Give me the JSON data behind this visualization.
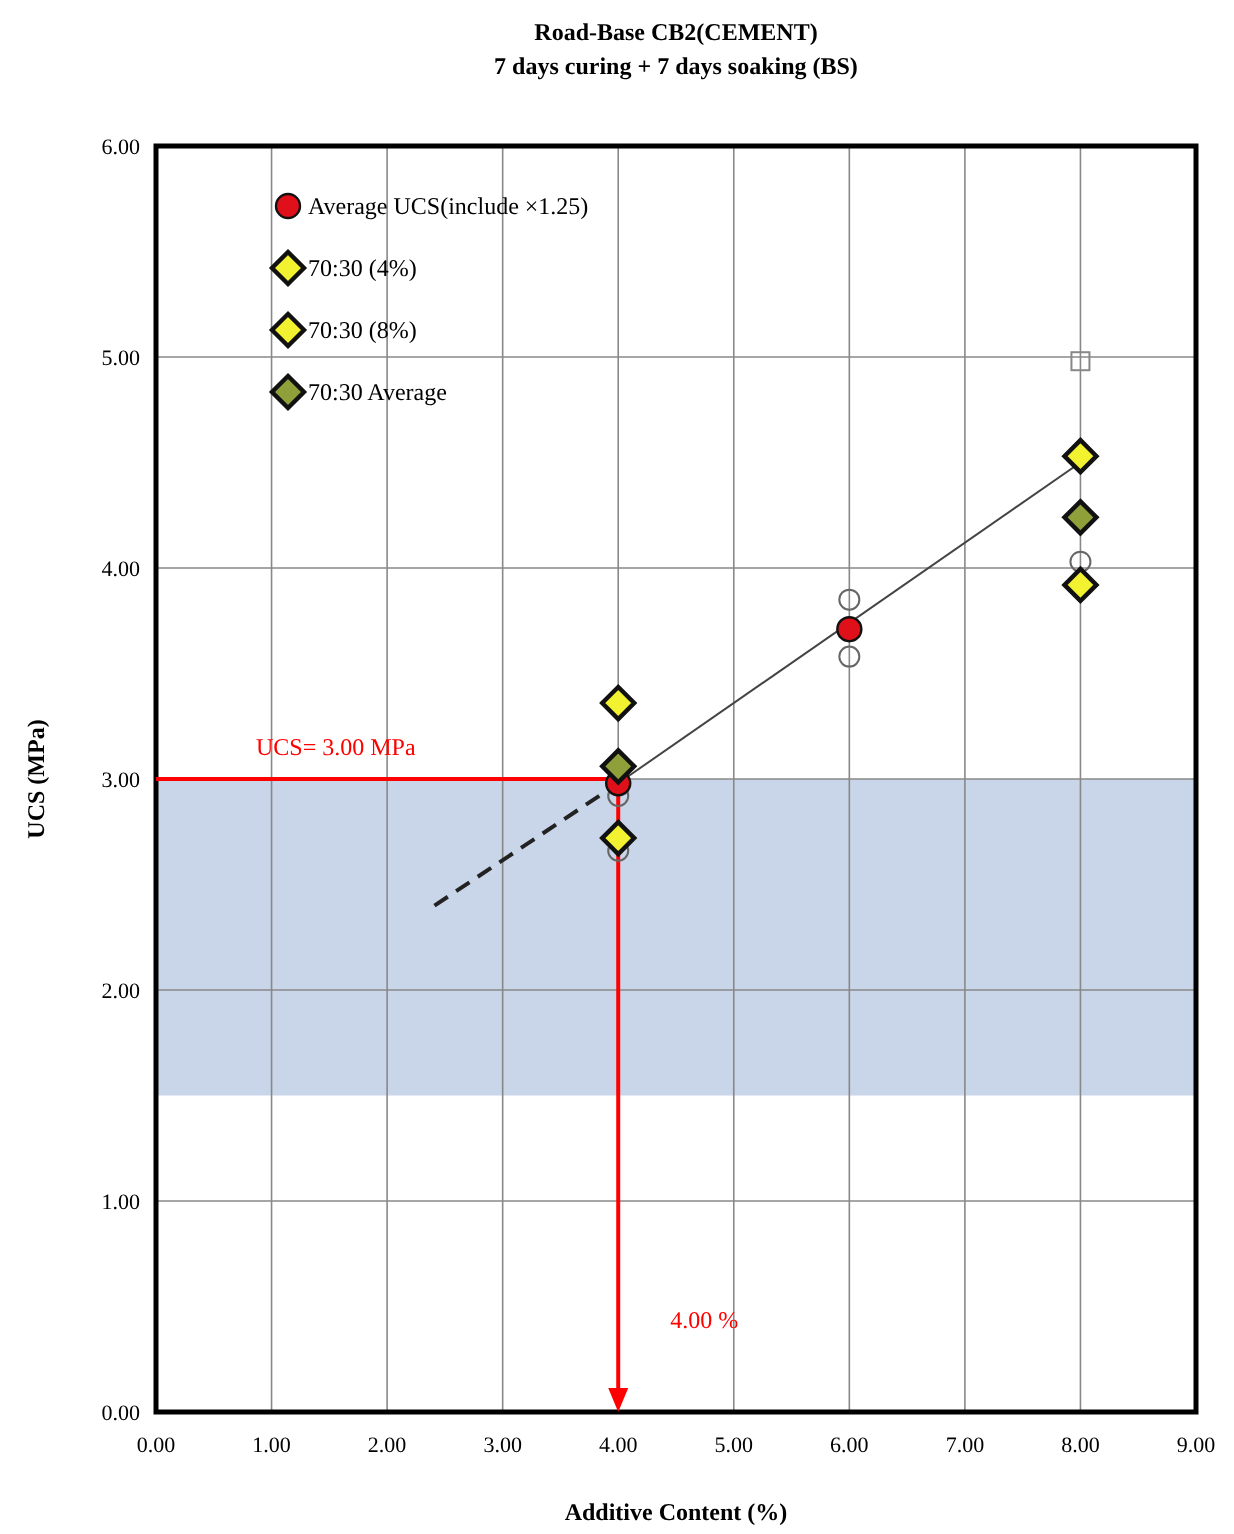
{
  "chart_data": {
    "type": "scatter",
    "title": "Road-Base CB2(CEMENT)",
    "subtitle": "7 days curing + 7 days soaking (BS)",
    "xlabel": "Additive Content (%)",
    "ylabel": "UCS (MPa)",
    "xlim": [
      0,
      9
    ],
    "ylim": [
      0,
      6
    ],
    "xticks": [
      {
        "value": 0,
        "label": "0.00"
      },
      {
        "value": 1,
        "label": "1.00"
      },
      {
        "value": 2,
        "label": "2.00"
      },
      {
        "value": 3,
        "label": "3.00"
      },
      {
        "value": 4,
        "label": "4.00"
      },
      {
        "value": 5,
        "label": "5.00"
      },
      {
        "value": 6,
        "label": "6.00"
      },
      {
        "value": 7,
        "label": "7.00"
      },
      {
        "value": 8,
        "label": "8.00"
      },
      {
        "value": 9,
        "label": "9.00"
      }
    ],
    "yticks": [
      {
        "value": 0,
        "label": "0.00"
      },
      {
        "value": 1,
        "label": "1.00"
      },
      {
        "value": 2,
        "label": "2.00"
      },
      {
        "value": 3,
        "label": "3.00"
      },
      {
        "value": 4,
        "label": "4.00"
      },
      {
        "value": 5,
        "label": "5.00"
      },
      {
        "value": 6,
        "label": "6.00"
      }
    ],
    "grid": true,
    "legend": "top left",
    "bands": [
      {
        "axis": "y",
        "from": 1.5,
        "to": 3.0,
        "color": "#c9d5e8"
      }
    ],
    "ref_lines": [
      {
        "axis": "y",
        "value": 3.0,
        "label": "UCS= 3.00 MPa",
        "color": "#ff0000"
      },
      {
        "axis": "x",
        "value": 4.0,
        "label": "4.00 %",
        "color": "#ff0000"
      }
    ],
    "series": [
      {
        "type": "line",
        "x": [
          2.41,
          4
        ],
        "values": [
          2.4,
          2.98
        ],
        "color": "#222222",
        "line_style": "dashed",
        "marker": "none"
      },
      {
        "type": "line",
        "x": [
          4,
          8
        ],
        "values": [
          2.98,
          4.5
        ],
        "color": "#444444",
        "line_style": "solid",
        "marker": "none"
      },
      {
        "x": [
          4,
          4,
          6,
          6,
          8
        ],
        "values": [
          2.92,
          2.66,
          3.85,
          3.58,
          4.03
        ],
        "color": "#666666",
        "marker": "circle"
      },
      {
        "x": [
          8
        ],
        "values": [
          4.98
        ],
        "color": "#888888",
        "marker": "square"
      },
      {
        "name": "Average UCS(include ×1.25)",
        "x": [
          4,
          6
        ],
        "values": [
          2.98,
          3.71
        ],
        "color": "#e0101a",
        "marker": "circle"
      },
      {
        "name": "70:30 (4%)",
        "x": [
          4,
          4
        ],
        "values": [
          3.36,
          2.72
        ],
        "color": "#f2f230",
        "marker": "diamond"
      },
      {
        "name": "70:30 (8%)",
        "x": [
          8,
          8
        ],
        "values": [
          4.53,
          3.92
        ],
        "color": "#f2f230",
        "marker": "diamond"
      },
      {
        "name": "70:30 Average",
        "x": [
          4,
          8
        ],
        "values": [
          3.06,
          4.24
        ],
        "color": "#8fa03a",
        "marker": "diamond"
      }
    ]
  }
}
